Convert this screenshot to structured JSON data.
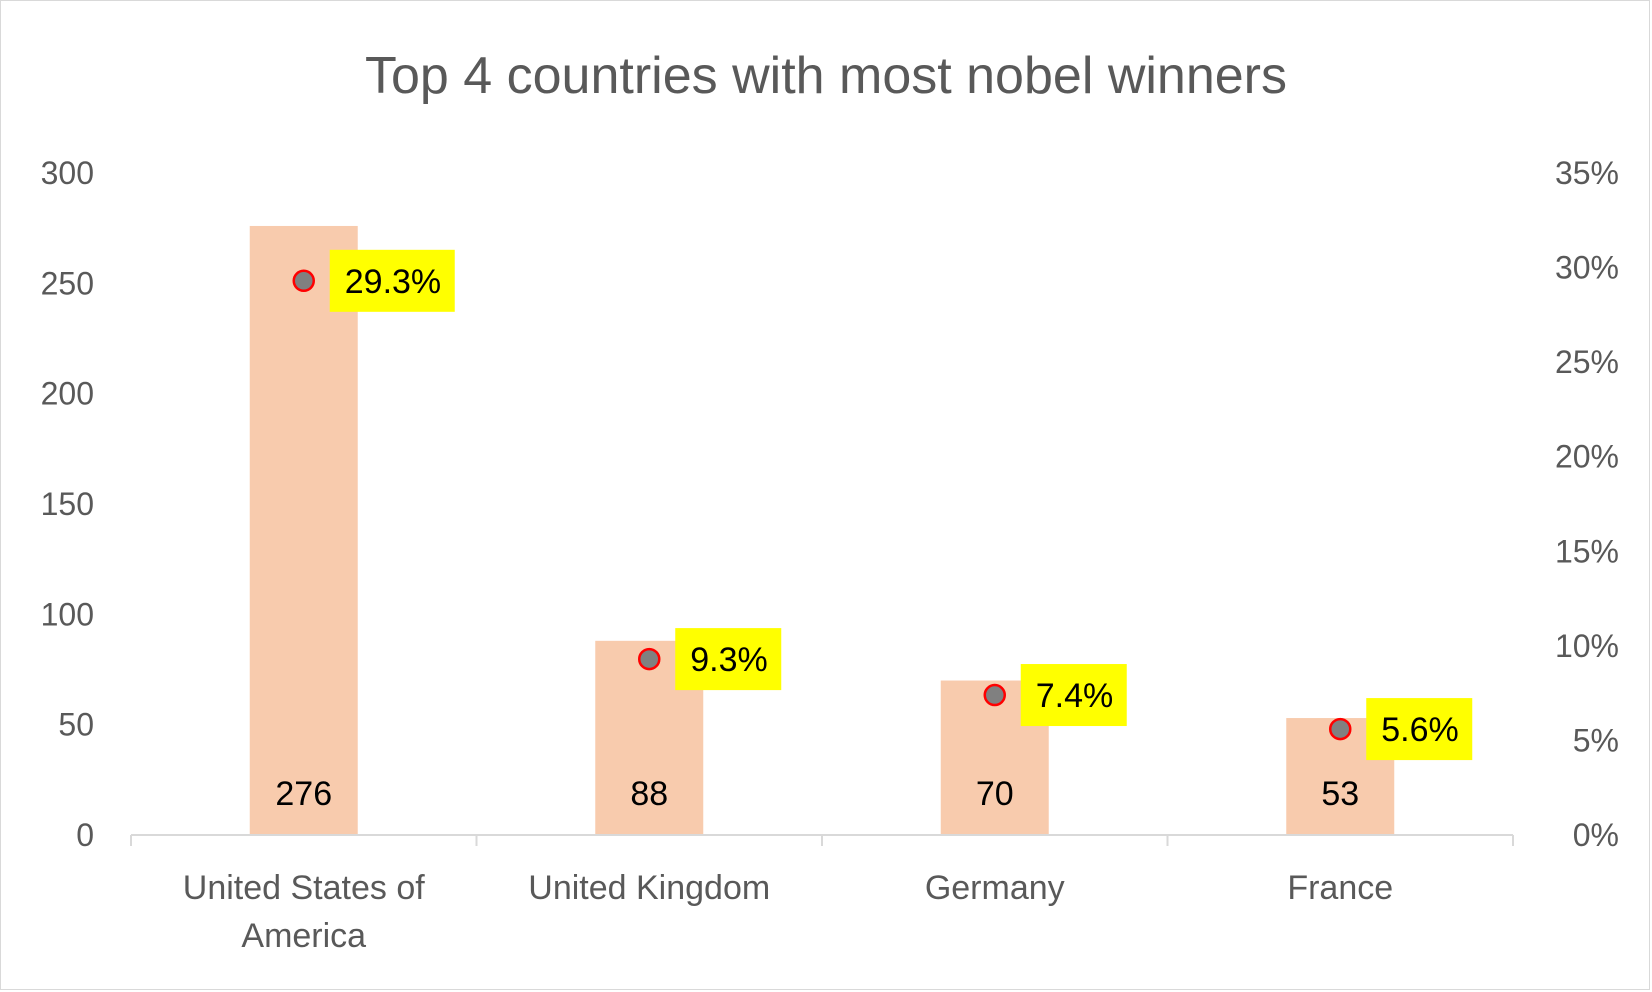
{
  "chart_data": {
    "type": "bar",
    "title": "Top 4 countries with most nobel winners",
    "categories": [
      "United States of America",
      "United Kingdom",
      "Germany",
      "France"
    ],
    "category_lines": [
      [
        "United States of",
        "America"
      ],
      [
        "United Kingdom"
      ],
      [
        "Germany"
      ],
      [
        "France"
      ]
    ],
    "series": [
      {
        "type": "bar",
        "axis": "left",
        "values": [
          276,
          88,
          70,
          53
        ],
        "value_labels": [
          "276",
          "88",
          "70",
          "53"
        ],
        "color": "#F8CBAD"
      },
      {
        "type": "scatter",
        "axis": "right",
        "values": [
          29.3,
          9.3,
          7.4,
          5.6
        ],
        "value_labels": [
          "29.3%",
          "9.3%",
          "7.4%",
          "5.6%"
        ],
        "marker_fill": "#808080",
        "marker_stroke": "#FF0000",
        "label_bg": "#FFFF00"
      }
    ],
    "y_left": {
      "ylim": [
        0,
        300
      ],
      "ticks": [
        0,
        50,
        100,
        150,
        200,
        250,
        300
      ],
      "tick_labels": [
        "0",
        "50",
        "100",
        "150",
        "200",
        "250",
        "300"
      ]
    },
    "y_right": {
      "ylim": [
        0,
        35
      ],
      "ticks": [
        0,
        5,
        10,
        15,
        20,
        25,
        30,
        35
      ],
      "tick_labels": [
        "0%",
        "5%",
        "10%",
        "15%",
        "20%",
        "25%",
        "30%",
        "35%"
      ]
    },
    "grid": false,
    "legend": "none"
  }
}
